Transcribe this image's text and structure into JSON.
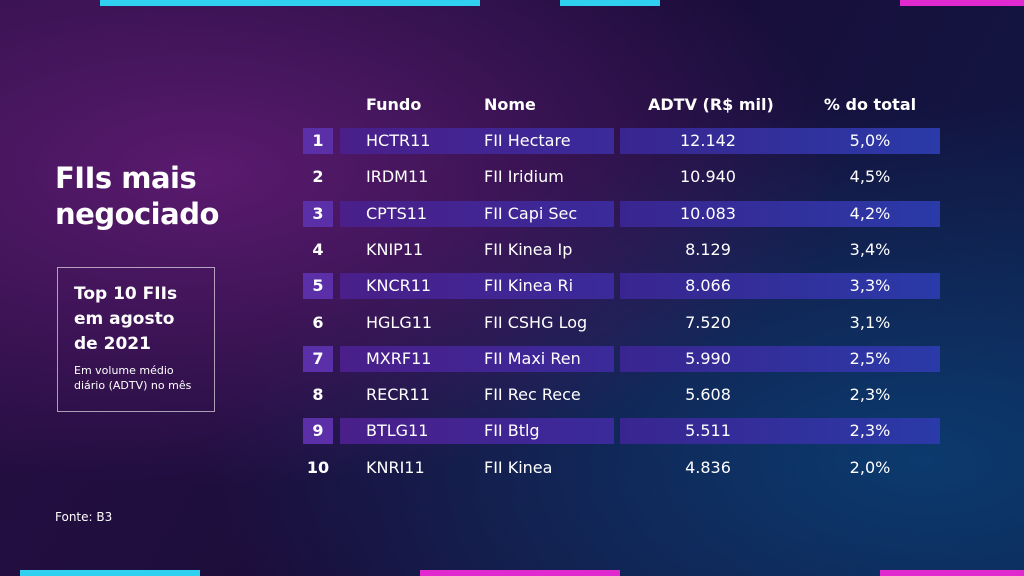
{
  "title": "FIIs mais negociado",
  "box": {
    "title": "Top 10 FIIs em agosto de 2021",
    "subtitle": "Em volume médio diário (ADTV) no mês"
  },
  "source": "Fonte: B3",
  "table": {
    "headers": [
      "Fundo",
      "Nome",
      "ADTV (R$ mil)",
      "% do total"
    ],
    "rows": [
      [
        "1",
        "HCTR11",
        "FII Hectare",
        "12.142",
        "5,0%"
      ],
      [
        "2",
        "IRDM11",
        "FII Iridium",
        "10.940",
        "4,5%"
      ],
      [
        "3",
        "CPTS11",
        "FII Capi Sec",
        "10.083",
        "4,2%"
      ],
      [
        "4",
        "KNIP11",
        "FII Kinea Ip",
        "8.129",
        "3,4%"
      ],
      [
        "5",
        "KNCR11",
        "FII Kinea Ri",
        "8.066",
        "3,3%"
      ],
      [
        "6",
        "HGLG11",
        "FII CSHG Log",
        "7.520",
        "3,1%"
      ],
      [
        "7",
        "MXRF11",
        "FII Maxi Ren",
        "5.990",
        "2,5%"
      ],
      [
        "8",
        "RECR11",
        "FII Rec Rece",
        "5.608",
        "2,3%"
      ],
      [
        "9",
        "BTLG11",
        "FII Btlg",
        "5.511",
        "2,3%"
      ],
      [
        "10",
        "KNRI11",
        "FII Kinea",
        "4.836",
        "2,0%"
      ]
    ]
  }
}
